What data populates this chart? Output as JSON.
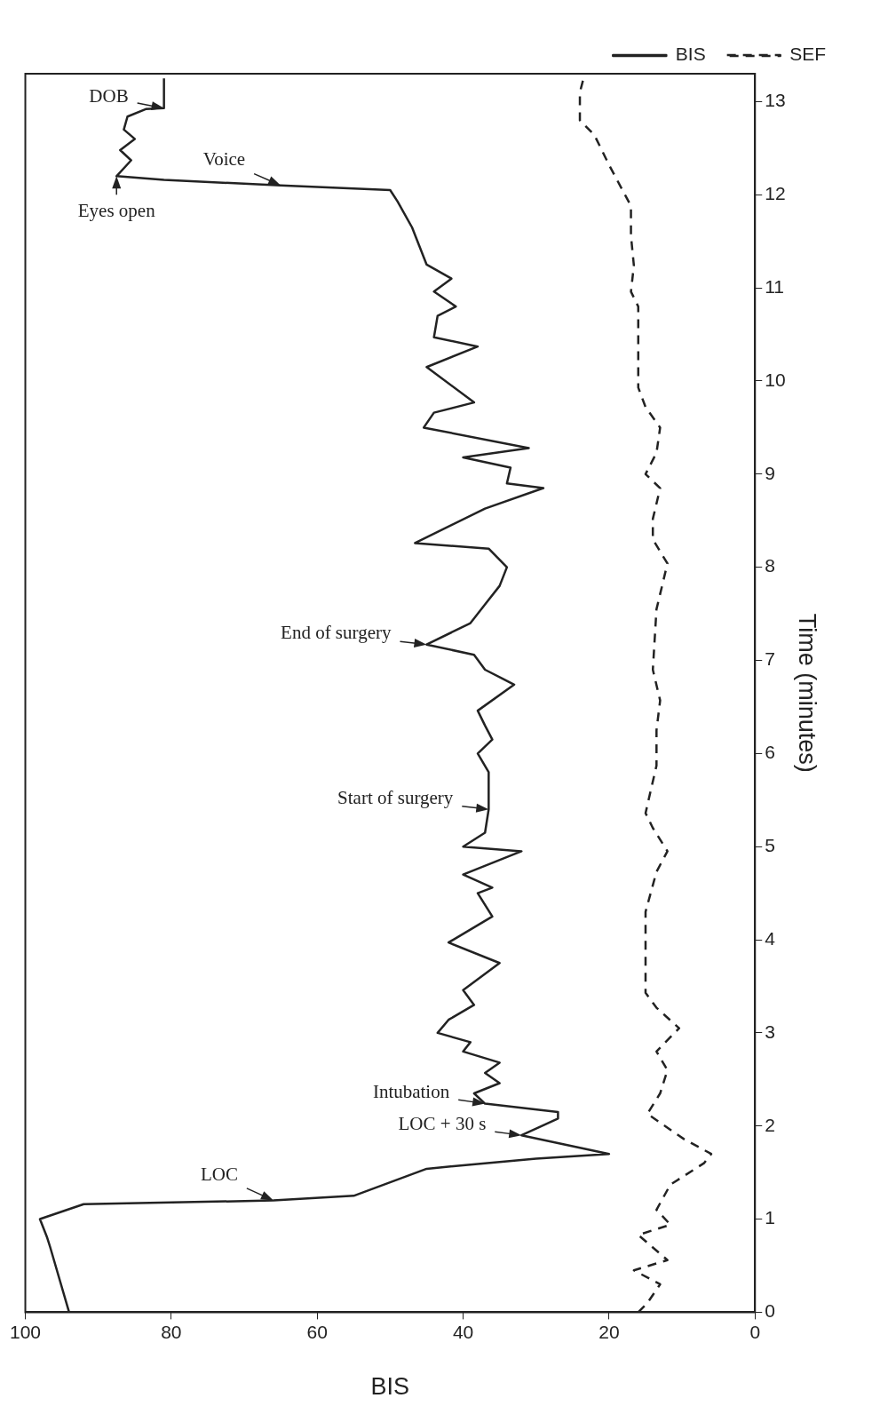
{
  "chart_data": {
    "type": "line",
    "xlabel": "BIS",
    "ylabel": "Time (minutes)",
    "xlim": [
      100,
      0
    ],
    "ylim": [
      0,
      13.3
    ],
    "xticks": [
      100,
      80,
      60,
      40,
      20,
      0
    ],
    "yticks": [
      0,
      1,
      2,
      3,
      4,
      5,
      6,
      7,
      8,
      9,
      10,
      11,
      12,
      13
    ],
    "grid": false,
    "legend": "top right",
    "marker": "none",
    "series": [
      {
        "name": "BIS",
        "color": "#222222",
        "line_style": "solid",
        "x": [
          94,
          96.6,
          97,
          98,
          92,
          66,
          55,
          45,
          37,
          30,
          20,
          32,
          27,
          27,
          37,
          38.5,
          35,
          37,
          35,
          40,
          39,
          43.5,
          42,
          38.5,
          40,
          35,
          42,
          36,
          38,
          36,
          40,
          32,
          40,
          37,
          36.5,
          36.5,
          38,
          36,
          37,
          38,
          33,
          37,
          38.5,
          45,
          39,
          37,
          35,
          34,
          36.5,
          46.6,
          37,
          29,
          34,
          33.5,
          40,
          31,
          45.4,
          44,
          38.5,
          45,
          38,
          44,
          43.5,
          41,
          44,
          41.6,
          45,
          46,
          47,
          49,
          50,
          65,
          81,
          87.5,
          85.5,
          87,
          85,
          86.5,
          86,
          83.5,
          81,
          81
        ],
        "values": [
          0,
          0.7,
          0.8,
          1.0,
          1.16,
          1.2,
          1.25,
          1.54,
          1.6,
          1.65,
          1.7,
          1.9,
          2.08,
          2.15,
          2.24,
          2.35,
          2.46,
          2.57,
          2.68,
          2.8,
          2.9,
          3.0,
          3.14,
          3.3,
          3.46,
          3.75,
          3.97,
          4.25,
          4.5,
          4.56,
          4.7,
          4.95,
          5.0,
          5.15,
          5.4,
          5.8,
          6.0,
          6.15,
          6.3,
          6.46,
          6.74,
          6.9,
          7.06,
          7.17,
          7.4,
          7.6,
          7.8,
          8.0,
          8.2,
          8.26,
          8.63,
          8.85,
          8.9,
          9.07,
          9.18,
          9.28,
          9.5,
          9.66,
          9.77,
          10.15,
          10.37,
          10.47,
          10.7,
          10.8,
          10.96,
          11.1,
          11.25,
          11.45,
          11.65,
          11.93,
          12.05,
          12.1,
          12.16,
          12.2,
          12.37,
          12.48,
          12.6,
          12.7,
          12.84,
          12.92,
          12.93,
          13.25
        ]
      },
      {
        "name": "SEF",
        "color": "#222222",
        "line_style": "dashed",
        "x": [
          16,
          14.75,
          13,
          16.6,
          12,
          16,
          11.6,
          13.5,
          11.6,
          7,
          6,
          9.75,
          14.75,
          13,
          12,
          13.5,
          10.4,
          13.5,
          15,
          15,
          13.5,
          12,
          14,
          15,
          13.5,
          13.5,
          13,
          14,
          13.5,
          12,
          14,
          14,
          13,
          15,
          13.5,
          13,
          15,
          16,
          16,
          17,
          16.6,
          17,
          17,
          20,
          22,
          24,
          24,
          23.5
        ],
        "values": [
          0,
          0.1,
          0.3,
          0.45,
          0.56,
          0.83,
          0.94,
          1.1,
          1.37,
          1.6,
          1.7,
          1.86,
          2.13,
          2.35,
          2.6,
          2.8,
          3.05,
          3.27,
          3.43,
          4.3,
          4.73,
          4.95,
          5.2,
          5.36,
          5.87,
          6.25,
          6.57,
          6.9,
          7.55,
          8.04,
          8.3,
          8.52,
          8.85,
          9.0,
          9.23,
          9.5,
          9.72,
          9.93,
          10.8,
          10.96,
          11.24,
          11.56,
          11.88,
          12.32,
          12.64,
          12.8,
          13.1,
          13.25
        ]
      }
    ],
    "annotations": [
      {
        "text": "LOC",
        "x": 66,
        "y": 1.2
      },
      {
        "text": "LOC + 30 s",
        "x": 32,
        "y": 1.9
      },
      {
        "text": "Intubation",
        "x": 37,
        "y": 2.24
      },
      {
        "text": "Start of surgery",
        "x": 36.5,
        "y": 5.4
      },
      {
        "text": "End of surgery",
        "x": 45,
        "y": 7.17
      },
      {
        "text": "Voice",
        "x": 65,
        "y": 12.1
      },
      {
        "text": "Eyes open",
        "x": 87.5,
        "y": 12.2
      },
      {
        "text": "DOB",
        "x": 81,
        "y": 12.93
      }
    ]
  }
}
